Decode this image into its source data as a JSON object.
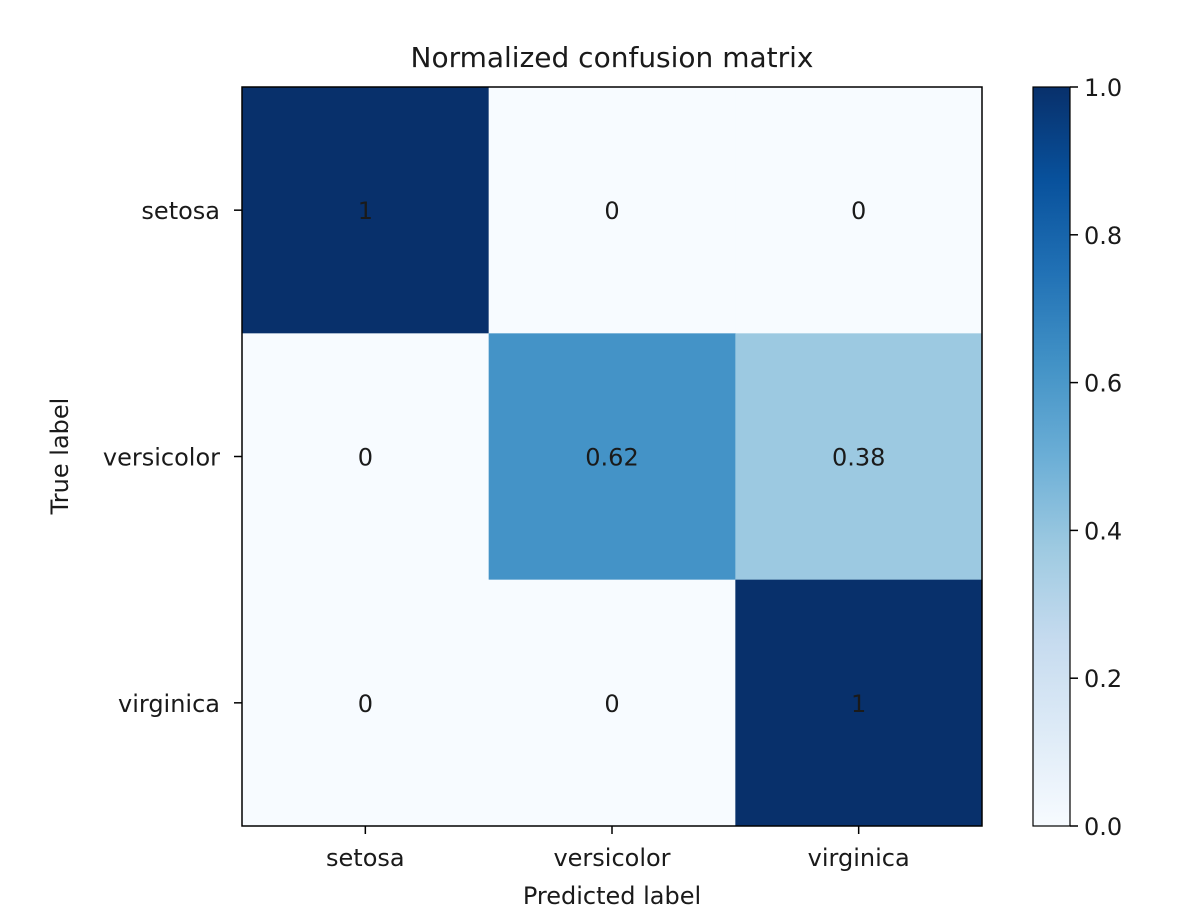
{
  "chart_data": {
    "type": "heatmap",
    "title": "Normalized confusion matrix",
    "xlabel": "Predicted label",
    "ylabel": "True label",
    "x_categories": [
      "setosa",
      "versicolor",
      "virginica"
    ],
    "y_categories": [
      "setosa",
      "versicolor",
      "virginica"
    ],
    "values": [
      [
        1,
        0,
        0
      ],
      [
        0,
        0.62,
        0.38
      ],
      [
        0,
        0,
        1
      ]
    ],
    "cell_labels": [
      [
        "1",
        "0",
        "0"
      ],
      [
        "0",
        "0.62",
        "0.38"
      ],
      [
        "0",
        "0",
        "1"
      ]
    ],
    "colormap": "Blues",
    "colorbar": {
      "range": [
        0.0,
        1.0
      ],
      "ticks": [
        0.0,
        0.2,
        0.4,
        0.6,
        0.8,
        1.0
      ],
      "tick_labels": [
        "0.0",
        "0.2",
        "0.4",
        "0.6",
        "0.8",
        "1.0"
      ]
    },
    "grid": false
  }
}
